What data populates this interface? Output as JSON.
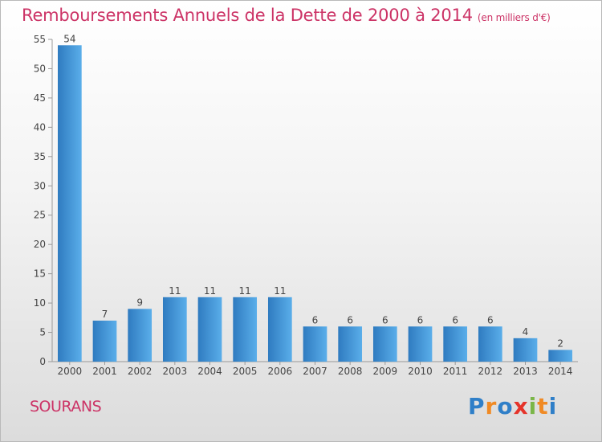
{
  "header": {
    "title": "Remboursements Annuels de la Dette de 2000 à 2014",
    "unit": "(en milliers d'€)"
  },
  "footer": {
    "town": "SOURANS",
    "logo": {
      "letters": [
        {
          "ch": "P",
          "color": "#2f7fc8"
        },
        {
          "ch": "r",
          "color": "#f08a24"
        },
        {
          "ch": "o",
          "color": "#2f7fc8"
        },
        {
          "ch": "x",
          "color": "#e5342a"
        },
        {
          "ch": "i",
          "color": "#7ab648"
        },
        {
          "ch": "t",
          "color": "#f08a24"
        },
        {
          "ch": "i",
          "color": "#2f7fc8"
        }
      ]
    }
  },
  "chart_data": {
    "type": "bar",
    "categories": [
      "2000",
      "2001",
      "2002",
      "2003",
      "2004",
      "2005",
      "2006",
      "2007",
      "2008",
      "2009",
      "2010",
      "2011",
      "2012",
      "2013",
      "2014"
    ],
    "values": [
      54,
      7,
      9,
      11,
      11,
      11,
      11,
      6,
      6,
      6,
      6,
      6,
      6,
      4,
      2
    ],
    "data_labels": [
      "54",
      "7",
      "9",
      "11",
      "11",
      "11",
      "11",
      "6",
      "6",
      "6",
      "6",
      "6",
      "6",
      "4",
      "2"
    ],
    "ylim": [
      0,
      55
    ],
    "yticks": [
      0,
      5,
      10,
      15,
      20,
      25,
      30,
      35,
      40,
      45,
      50,
      55
    ],
    "grid": false,
    "colors": {
      "bar_light": "#5aaeea",
      "bar_dark": "#2f7bc0",
      "axis": "#999999"
    }
  }
}
